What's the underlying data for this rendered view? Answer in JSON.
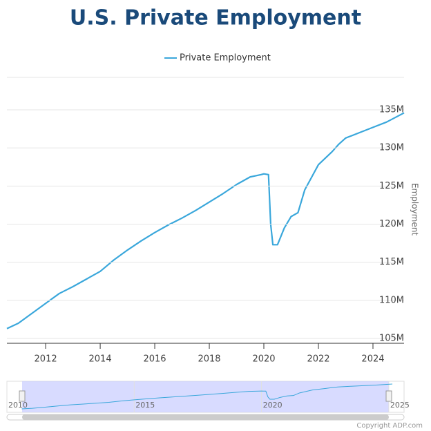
{
  "chart_data": {
    "type": "line",
    "title": "U.S. Private Employment",
    "y_axis_label": "Employment",
    "x": [
      2010.58,
      2011.0,
      2011.5,
      2012.0,
      2012.5,
      2013.0,
      2013.5,
      2014.0,
      2014.5,
      2015.0,
      2015.5,
      2016.0,
      2016.5,
      2017.0,
      2017.5,
      2018.0,
      2018.5,
      2019.0,
      2019.5,
      2019.9,
      2020.0,
      2020.17,
      2020.25,
      2020.33,
      2020.5,
      2020.75,
      2021.0,
      2021.25,
      2021.5,
      2022.0,
      2022.5,
      2022.75,
      2023.0,
      2023.5,
      2024.0,
      2024.5,
      2025.14
    ],
    "series": [
      {
        "name": "Private Employment",
        "color": "#3aa7db",
        "values": [
          106.3,
          107.0,
          108.3,
          109.6,
          110.9,
          111.8,
          112.8,
          113.8,
          115.3,
          116.6,
          117.8,
          118.9,
          119.9,
          120.8,
          121.8,
          122.9,
          124.0,
          125.2,
          126.2,
          126.5,
          126.6,
          126.5,
          120.0,
          117.3,
          117.3,
          119.5,
          121.0,
          121.5,
          124.5,
          127.8,
          129.5,
          130.5,
          131.3,
          132.0,
          132.7,
          133.4,
          134.6
        ]
      }
    ],
    "xlim": [
      2010.58,
      2025.14
    ],
    "xticks": [
      2012,
      2014,
      2016,
      2018,
      2020,
      2022,
      2024
    ],
    "ylim": [
      104.37,
      139.26
    ],
    "yticks": [
      {
        "value": 105,
        "label": "105M"
      },
      {
        "value": 110,
        "label": "110M"
      },
      {
        "value": 115,
        "label": "115M"
      },
      {
        "value": 120,
        "label": "120M"
      },
      {
        "value": 125,
        "label": "125M"
      },
      {
        "value": 130,
        "label": "130M"
      },
      {
        "value": 135,
        "label": "135M"
      }
    ],
    "grid": true,
    "navigator": {
      "xlim": [
        2010,
        2025.6
      ],
      "xticks": [
        2010,
        2015,
        2020,
        2025
      ]
    },
    "credit": "Copyright ADP.com"
  }
}
